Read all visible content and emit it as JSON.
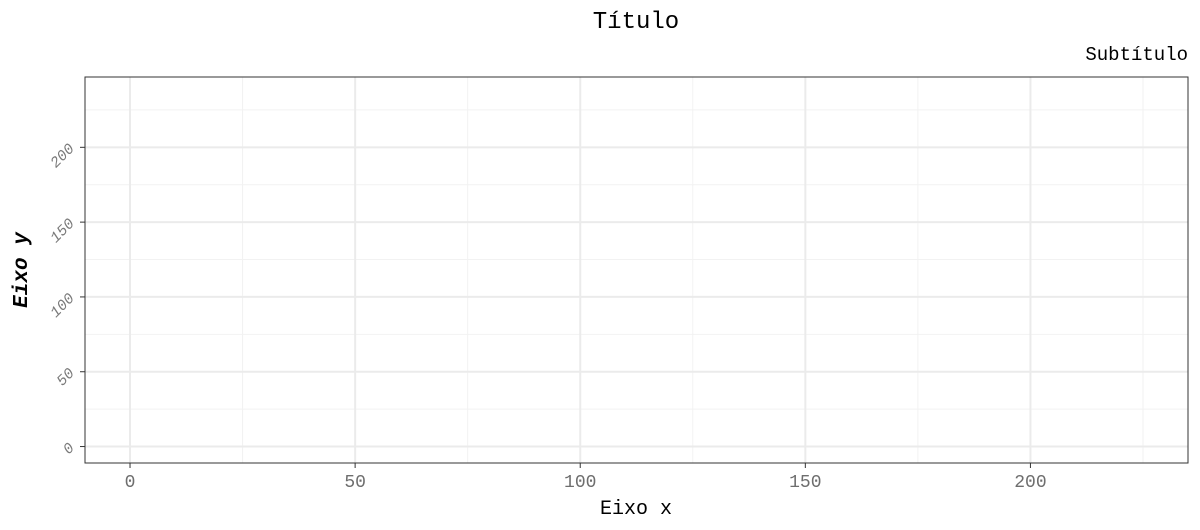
{
  "chart_data": {
    "type": "scatter",
    "title": "Título",
    "subtitle": "Subtítulo",
    "xlabel": "Eixo x",
    "ylabel": "Eixo y",
    "x": [],
    "y": [],
    "xlim": [
      -10,
      235
    ],
    "ylim": [
      -11,
      247
    ],
    "x_ticks": [
      0,
      50,
      100,
      150,
      200
    ],
    "x_tick_labels": [
      "0",
      "50",
      "100",
      "150",
      "200"
    ],
    "x_minor_ticks": [
      25,
      75,
      125,
      175,
      225
    ],
    "y_ticks": [
      0,
      50,
      100,
      150,
      200
    ],
    "y_tick_labels": [
      "0",
      "50",
      "100",
      "150",
      "200"
    ],
    "y_minor_ticks": [
      25,
      75,
      125,
      175,
      225
    ],
    "grid": true,
    "legend": "none"
  }
}
